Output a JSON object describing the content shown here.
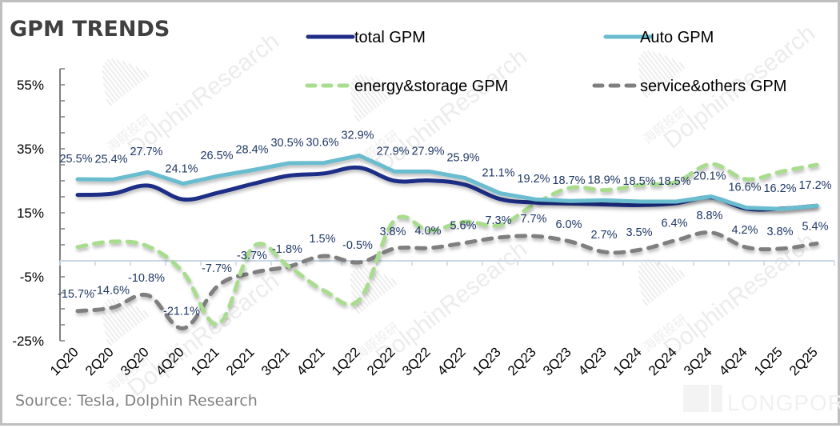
{
  "chart_data": {
    "type": "line",
    "title": "GPM TRENDS",
    "xlabel": "",
    "ylabel": "",
    "ylim": [
      -25,
      60
    ],
    "yticks": [
      55,
      35,
      15,
      -5,
      -25
    ],
    "ytick_labels": [
      "55%",
      "35%",
      "15%",
      "-5%",
      "-25%"
    ],
    "y_minor_step": 5,
    "grid": false,
    "legend_position": "top-right",
    "categories": [
      "1Q20",
      "2Q20",
      "3Q20",
      "4Q20",
      "1Q21",
      "2Q21",
      "3Q21",
      "4Q21",
      "1Q22",
      "2Q22",
      "3Q22",
      "4Q22",
      "1Q23",
      "2Q23",
      "3Q23",
      "4Q23",
      "1Q24",
      "2Q24",
      "3Q24",
      "4Q24",
      "1Q25",
      "2Q25"
    ],
    "series": [
      {
        "name": "total GPM",
        "color": "#1f2d86",
        "style": "solid",
        "labeled": false,
        "values": [
          20.6,
          21.0,
          23.5,
          19.2,
          21.3,
          24.1,
          26.6,
          27.3,
          29.1,
          25.0,
          25.1,
          23.8,
          19.3,
          18.2,
          17.9,
          17.6,
          17.4,
          18.0,
          19.8,
          16.3,
          16.3,
          17.2
        ]
      },
      {
        "name": "Auto GPM",
        "color": "#6bbccf",
        "style": "solid",
        "labeled": true,
        "values": [
          25.5,
          25.4,
          27.7,
          24.1,
          26.5,
          28.4,
          30.5,
          30.6,
          32.9,
          27.9,
          27.9,
          25.9,
          21.1,
          19.2,
          18.7,
          18.9,
          18.5,
          18.5,
          20.1,
          16.6,
          16.2,
          17.2
        ],
        "labels": [
          "25.5%",
          "25.4%",
          "27.7%",
          "24.1%",
          "26.5%",
          "28.4%",
          "30.5%",
          "30.6%",
          "32.9%",
          "27.9%",
          "27.9%",
          "25.9%",
          "21.1%",
          "19.2%",
          "18.7%",
          "18.9%",
          "18.5%",
          "18.5%",
          "20.1%",
          "16.6%",
          "16.2%",
          "17.2%"
        ]
      },
      {
        "name": "energy&storage GPM",
        "color": "#a9dc8e",
        "style": "dashed",
        "labeled": false,
        "values": [
          4.3,
          6.0,
          4.5,
          -3.6,
          -19.7,
          4.5,
          -1.8,
          -9.3,
          -12.2,
          12.6,
          9.5,
          12.2,
          11.2,
          17.8,
          22.8,
          22.1,
          23.7,
          24.6,
          30.2,
          25.5,
          27.9,
          30.0
        ]
      },
      {
        "name": "service&others GPM",
        "color": "#7f7f7f",
        "style": "dashed",
        "labeled": true,
        "values": [
          -15.7,
          -14.6,
          -10.8,
          -21.1,
          -7.7,
          -3.7,
          -1.8,
          1.5,
          -0.5,
          3.8,
          4.0,
          5.6,
          7.3,
          7.7,
          6.0,
          2.7,
          3.5,
          6.4,
          8.8,
          4.2,
          3.8,
          5.4
        ],
        "labels": [
          "-15.7%",
          "-14.6%",
          "-10.8%",
          "-21.1%",
          "-7.7%",
          "-3.7%",
          "-1.8%",
          "1.5%",
          "-0.5%",
          "3.8%",
          "4.0%",
          "5.6%",
          "7.3%",
          "7.7%",
          "6.0%",
          "2.7%",
          "3.5%",
          "6.4%",
          "8.8%",
          "4.2%",
          "3.8%",
          "5.4%"
        ]
      }
    ]
  },
  "legend": [
    {
      "label": "total GPM"
    },
    {
      "label": "Auto GPM"
    },
    {
      "label": "energy&storage GPM"
    },
    {
      "label": "service&others GPM"
    }
  ],
  "source": "Source: Tesla,  Dolphin Research",
  "watermark": {
    "text": "DolphinResearch",
    "cn": "海豚投研",
    "brand": "LONGPORT"
  }
}
